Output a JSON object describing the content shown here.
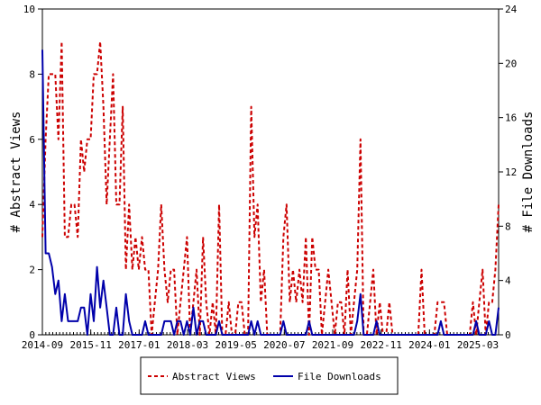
{
  "chart_data": {
    "type": "line",
    "x_ticks": [
      "2014-09",
      "2015-11",
      "2017-01",
      "2018-03",
      "2019-05",
      "2020-07",
      "2021-09",
      "2022-11",
      "2024-01",
      "2025-03"
    ],
    "x_tick_positions": [
      0,
      14,
      28,
      42,
      56,
      70,
      84,
      98,
      112,
      126
    ],
    "x_range": [
      0,
      132
    ],
    "left_axis": {
      "label": "# Abstract Views",
      "range": [
        0,
        10
      ],
      "ticks": [
        "0",
        "2",
        "4",
        "6",
        "8",
        "10"
      ]
    },
    "right_axis": {
      "label": "# File Downloads",
      "range": [
        0,
        24
      ],
      "ticks": [
        "0",
        "4",
        "8",
        "12",
        "16",
        "20",
        "24"
      ]
    },
    "grid": false,
    "legend_position": "bottom",
    "series": [
      {
        "name": "Abstract Views",
        "axis": "left",
        "color": "#cc0000",
        "style": "dashed",
        "values": [
          3,
          6,
          8,
          8,
          8,
          6,
          9,
          3,
          3,
          4,
          4,
          3,
          6,
          5,
          6,
          6,
          8,
          8,
          9,
          7,
          4,
          6,
          8,
          4,
          4,
          7,
          2,
          4,
          2,
          3,
          2,
          3,
          2,
          2,
          0,
          1,
          2,
          4,
          2,
          1,
          2,
          2,
          0,
          1,
          2,
          3,
          0,
          1,
          2,
          0,
          3,
          1,
          0,
          1,
          0,
          4,
          0,
          0,
          1,
          0,
          0,
          1,
          1,
          0,
          0,
          7,
          3,
          4,
          1,
          2,
          0,
          0,
          0,
          0,
          0,
          3,
          4,
          1,
          2,
          1,
          2,
          1,
          3,
          0,
          3,
          2,
          2,
          0,
          1,
          2,
          1,
          0,
          1,
          1,
          0,
          2,
          0,
          1,
          2,
          6,
          0,
          0,
          1,
          2,
          0,
          1,
          0,
          0,
          1,
          0,
          0,
          0,
          0,
          0,
          0,
          0,
          0,
          0,
          2,
          0,
          0,
          0,
          0,
          1,
          1,
          1,
          0,
          0,
          0,
          0,
          0,
          0,
          0,
          0,
          1,
          0,
          1,
          2,
          0,
          1,
          1,
          2,
          4
        ]
      },
      {
        "name": "File Downloads",
        "axis": "right",
        "color": "#0000aa",
        "style": "solid",
        "values": [
          21,
          6,
          6,
          5,
          3,
          4,
          1,
          3,
          1,
          1,
          1,
          1,
          2,
          2,
          0,
          3,
          1,
          5,
          2,
          4,
          2,
          0,
          0,
          2,
          0,
          0,
          3,
          1,
          0,
          0,
          0,
          0,
          1,
          0,
          0,
          0,
          0,
          0,
          1,
          1,
          1,
          0,
          1,
          1,
          0,
          1,
          0,
          2,
          0,
          1,
          1,
          0,
          0,
          0,
          0,
          1,
          0,
          0,
          0,
          0,
          0,
          0,
          0,
          0,
          0,
          1,
          0,
          1,
          0,
          0,
          0,
          0,
          0,
          0,
          0,
          1,
          0,
          0,
          0,
          0,
          0,
          0,
          0,
          1,
          0,
          0,
          0,
          0,
          0,
          0,
          0,
          0,
          0,
          0,
          0,
          0,
          0,
          0,
          1,
          3,
          0,
          0,
          0,
          0,
          1,
          0,
          0,
          0,
          0,
          0,
          0,
          0,
          0,
          0,
          0,
          0,
          0,
          0,
          0,
          0,
          0,
          0,
          0,
          0,
          1,
          0,
          0,
          0,
          0,
          0,
          0,
          0,
          0,
          0,
          0,
          1,
          0,
          0,
          0,
          1,
          0,
          0,
          2
        ]
      }
    ]
  }
}
